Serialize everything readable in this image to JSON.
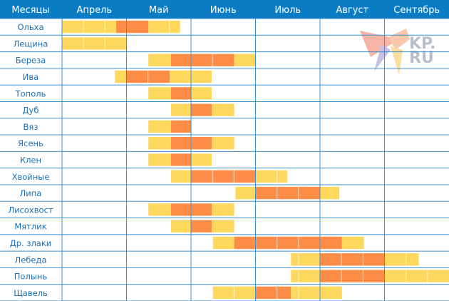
{
  "chart_data": {
    "type": "gantt",
    "header_label": "Месяцы",
    "months": [
      {
        "label": "Апрель",
        "number": 4
      },
      {
        "label": "Май",
        "number": 5
      },
      {
        "label": "Июнь",
        "number": 6
      },
      {
        "label": "Июль",
        "number": 7
      },
      {
        "label": "Август",
        "number": 8
      },
      {
        "label": "Сентябрь",
        "number": 9
      }
    ],
    "xlim": [
      4,
      10
    ],
    "x_unit": "month number (fractional)",
    "levels": {
      "low": "#fdd85d",
      "high": "#fd8c47"
    },
    "rows": [
      {
        "name": "Ольха",
        "segments": [
          [
            4.0,
            4.84,
            "low"
          ],
          [
            4.84,
            5.34,
            "high"
          ],
          [
            5.34,
            5.83,
            "low"
          ]
        ]
      },
      {
        "name": "Лещина",
        "segments": [
          [
            4.0,
            5.0,
            "low"
          ]
        ]
      },
      {
        "name": "Береза",
        "segments": [
          [
            5.34,
            5.69,
            "low"
          ],
          [
            5.69,
            6.67,
            "high"
          ],
          [
            6.67,
            7.0,
            "low"
          ]
        ]
      },
      {
        "name": "Ива",
        "segments": [
          [
            4.82,
            5.0,
            "low"
          ],
          [
            5.0,
            5.67,
            "high"
          ],
          [
            5.67,
            6.32,
            "low"
          ]
        ]
      },
      {
        "name": "Тополь",
        "segments": [
          [
            5.34,
            5.69,
            "low"
          ],
          [
            5.69,
            6.0,
            "high"
          ],
          [
            6.0,
            6.32,
            "low"
          ]
        ]
      },
      {
        "name": "Дуб",
        "segments": [
          [
            5.69,
            6.0,
            "low"
          ],
          [
            6.0,
            6.32,
            "high"
          ],
          [
            6.32,
            6.67,
            "low"
          ]
        ]
      },
      {
        "name": "Вяз",
        "segments": [
          [
            5.34,
            5.69,
            "low"
          ],
          [
            5.69,
            6.0,
            "high"
          ]
        ]
      },
      {
        "name": "Ясень",
        "segments": [
          [
            5.34,
            5.69,
            "low"
          ],
          [
            5.69,
            6.32,
            "high"
          ],
          [
            6.32,
            6.67,
            "low"
          ]
        ]
      },
      {
        "name": "Клен",
        "segments": [
          [
            5.34,
            5.69,
            "low"
          ],
          [
            5.69,
            6.0,
            "high"
          ],
          [
            6.0,
            6.32,
            "low"
          ]
        ]
      },
      {
        "name": "Хвойные",
        "segments": [
          [
            5.69,
            6.0,
            "low"
          ],
          [
            6.0,
            7.0,
            "high"
          ],
          [
            7.0,
            7.49,
            "low"
          ]
        ]
      },
      {
        "name": "Липа",
        "segments": [
          [
            6.69,
            7.0,
            "low"
          ],
          [
            7.0,
            8.0,
            "high"
          ],
          [
            8.0,
            8.3,
            "low"
          ]
        ]
      },
      {
        "name": "Лисохвост",
        "segments": [
          [
            5.34,
            5.69,
            "low"
          ],
          [
            5.69,
            6.32,
            "high"
          ],
          [
            6.32,
            6.67,
            "low"
          ]
        ]
      },
      {
        "name": "Мятлик",
        "segments": [
          [
            5.69,
            6.0,
            "low"
          ],
          [
            6.0,
            6.32,
            "high"
          ],
          [
            6.32,
            6.67,
            "low"
          ]
        ]
      },
      {
        "name": "Др. злаки",
        "segments": [
          [
            6.34,
            6.67,
            "low"
          ],
          [
            6.67,
            8.34,
            "high"
          ],
          [
            8.34,
            8.68,
            "low"
          ]
        ]
      },
      {
        "name": "Лебеда",
        "segments": [
          [
            7.55,
            8.0,
            "low"
          ],
          [
            8.0,
            9.0,
            "high"
          ],
          [
            9.0,
            9.53,
            "low"
          ]
        ]
      },
      {
        "name": "Полынь",
        "segments": [
          [
            7.55,
            8.0,
            "low"
          ],
          [
            8.0,
            9.0,
            "high"
          ],
          [
            9.0,
            10.0,
            "low"
          ]
        ]
      },
      {
        "name": "Щавель",
        "segments": [
          [
            6.34,
            7.0,
            "low"
          ],
          [
            7.0,
            7.55,
            "high"
          ],
          [
            7.55,
            8.34,
            "low"
          ]
        ]
      }
    ],
    "colors": {
      "header": "#0a7cc4",
      "grid": "#3a8fd0",
      "label": "#1a6fb5"
    }
  },
  "logo": {
    "text": "KP.RU"
  }
}
